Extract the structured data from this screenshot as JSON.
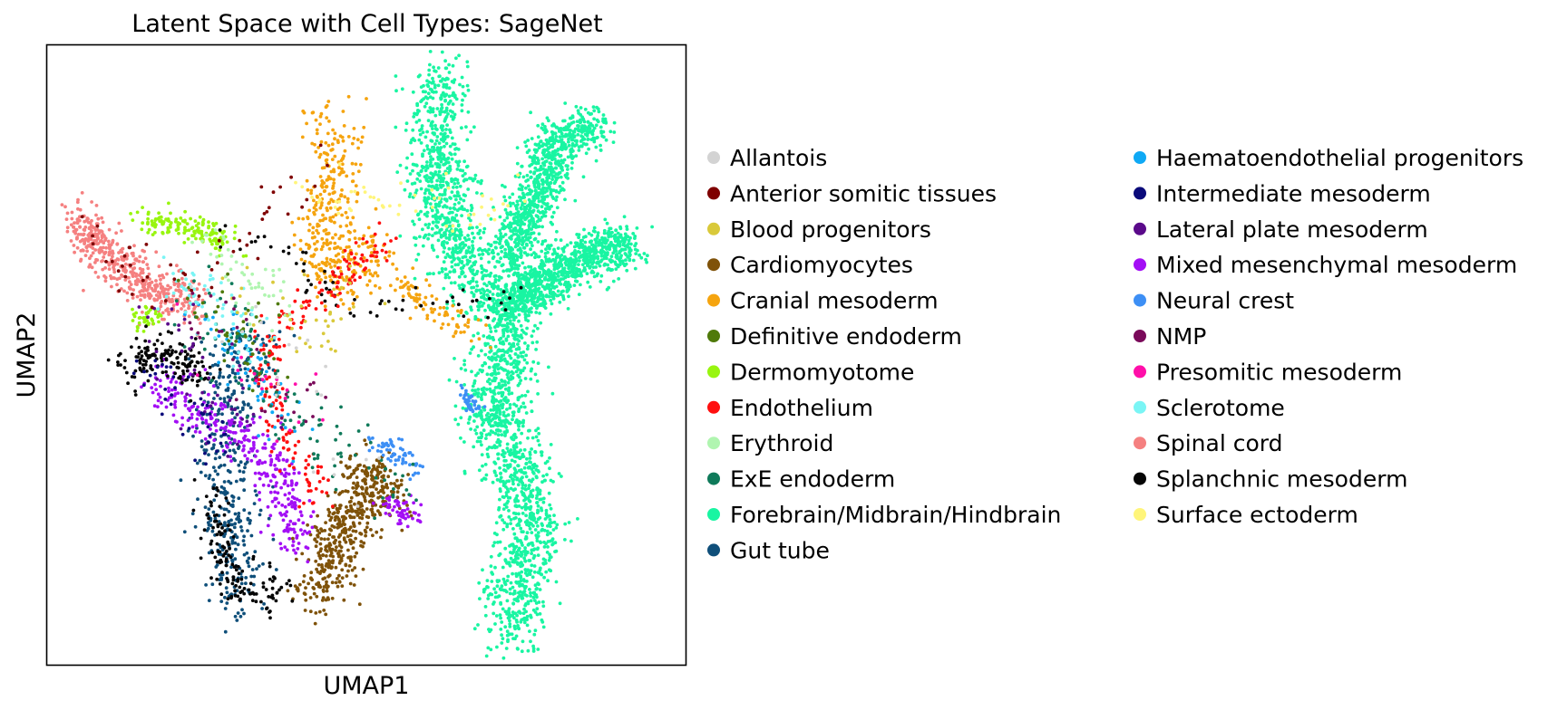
{
  "chart_data": {
    "type": "scatter",
    "title": "Latent Space with Cell Types: SageNet",
    "xlabel": "UMAP1",
    "ylabel": "UMAP2",
    "xlim": [
      0,
      100
    ],
    "ylim": [
      0,
      100
    ],
    "ticks": "none",
    "grid": false,
    "legend_position": "right, outside plot, two columns",
    "legend": [
      {
        "label": "Allantois",
        "color": "#d3d3d3"
      },
      {
        "label": "Anterior somitic tissues",
        "color": "#7f0000"
      },
      {
        "label": "Blood progenitors",
        "color": "#d9c93a"
      },
      {
        "label": "Cardiomyocytes",
        "color": "#7f5209"
      },
      {
        "label": "Cranial mesoderm",
        "color": "#f5a40f"
      },
      {
        "label": "Definitive endoderm",
        "color": "#4f7a0a"
      },
      {
        "label": "Dermomyotome",
        "color": "#98f50f"
      },
      {
        "label": "Endothelium",
        "color": "#ff0f0f"
      },
      {
        "label": "Erythroid",
        "color": "#b0f5b0"
      },
      {
        "label": "ExE endoderm",
        "color": "#0f7a5a"
      },
      {
        "label": "Forebrain/Midbrain/Hindbrain",
        "color": "#19f5a2"
      },
      {
        "label": "Gut tube",
        "color": "#0f4f7a"
      },
      {
        "label": "Haematoendothelial progenitors",
        "color": "#0fa9f5"
      },
      {
        "label": "Intermediate mesoderm",
        "color": "#0a0a7a"
      },
      {
        "label": "Lateral plate mesoderm",
        "color": "#5a0a8a"
      },
      {
        "label": "Mixed mesenchymal mesoderm",
        "color": "#a30ff5"
      },
      {
        "label": "Neural crest",
        "color": "#3d8ff5"
      },
      {
        "label": "NMP",
        "color": "#7a0a5a"
      },
      {
        "label": "Presomitic mesoderm",
        "color": "#ff0fa9"
      },
      {
        "label": "Sclerotome",
        "color": "#7af5f5"
      },
      {
        "label": "Spinal cord",
        "color": "#f58080"
      },
      {
        "label": "Splanchnic mesoderm",
        "color": "#050505"
      },
      {
        "label": "Surface ectoderm",
        "color": "#fff57a"
      }
    ],
    "clusters": [
      {
        "cell_type": "Forebrain/Midbrain/Hindbrain",
        "n": 2200,
        "polyline": [
          [
            61.5,
            95
          ],
          [
            61,
            88
          ],
          [
            61,
            80
          ],
          [
            62,
            72
          ],
          [
            65,
            66
          ],
          [
            69,
            61
          ],
          [
            73,
            56
          ],
          [
            71,
            50
          ],
          [
            71,
            45
          ],
          [
            69,
            41
          ],
          [
            72,
            34
          ],
          [
            75,
            28
          ],
          [
            76,
            22
          ],
          [
            74,
            14
          ],
          [
            73,
            5
          ]
        ],
        "width": 4.5
      },
      {
        "cell_type": "Forebrain/Midbrain/Hindbrain",
        "n": 900,
        "polyline": [
          [
            72,
            65
          ],
          [
            76,
            75
          ],
          [
            80,
            85
          ],
          [
            86,
            87
          ]
        ],
        "width": 3.5
      },
      {
        "cell_type": "Forebrain/Midbrain/Hindbrain",
        "n": 900,
        "polyline": [
          [
            72,
            58
          ],
          [
            78,
            62
          ],
          [
            84,
            66
          ],
          [
            91,
            68
          ]
        ],
        "width": 3.5
      },
      {
        "cell_type": "Spinal cord",
        "n": 480,
        "polyline": [
          [
            5,
            72
          ],
          [
            10,
            66
          ],
          [
            17,
            60
          ],
          [
            23,
            58
          ]
        ],
        "width": 3.2
      },
      {
        "cell_type": "Dermomyotome",
        "n": 150,
        "polyline": [
          [
            15,
            72
          ],
          [
            22,
            71
          ],
          [
            29,
            68
          ]
        ],
        "width": 2
      },
      {
        "cell_type": "Dermomyotome",
        "n": 40,
        "polyline": [
          [
            14,
            55
          ],
          [
            17,
            57
          ]
        ],
        "width": 1.5
      },
      {
        "cell_type": "Cranial mesoderm",
        "n": 380,
        "polyline": [
          [
            44,
            88
          ],
          [
            46,
            80
          ],
          [
            44,
            72
          ],
          [
            42,
            66
          ],
          [
            47,
            62
          ],
          [
            52,
            68
          ]
        ],
        "width": 4.5
      },
      {
        "cell_type": "Cranial mesoderm",
        "n": 80,
        "polyline": [
          [
            56,
            62
          ],
          [
            60,
            58
          ],
          [
            64,
            56
          ],
          [
            67,
            54
          ]
        ],
        "width": 2.5
      },
      {
        "cell_type": "Cardiomyocytes",
        "n": 500,
        "polyline": [
          [
            43,
            11
          ],
          [
            45,
            20
          ],
          [
            48,
            25
          ],
          [
            51,
            31
          ],
          [
            53,
            26
          ]
        ],
        "width": 4
      },
      {
        "cell_type": "Gut tube",
        "n": 420,
        "polyline": [
          [
            31,
            10
          ],
          [
            29,
            20
          ],
          [
            27,
            32
          ],
          [
            28,
            45
          ],
          [
            33,
            53
          ]
        ],
        "width": 4.5
      },
      {
        "cell_type": "Mixed mesenchymal mesoderm",
        "n": 330,
        "polyline": [
          [
            17,
            46
          ],
          [
            23,
            42
          ],
          [
            28,
            38
          ],
          [
            33,
            35
          ],
          [
            38,
            28
          ],
          [
            38,
            18
          ]
        ],
        "width": 3.5
      },
      {
        "cell_type": "Mixed mesenchymal mesoderm",
        "n": 50,
        "polyline": [
          [
            53,
            26
          ],
          [
            55,
            25
          ],
          [
            57,
            24
          ]
        ],
        "width": 2
      },
      {
        "cell_type": "Splanchnic mesoderm",
        "n": 150,
        "polyline": [
          [
            13,
            48
          ],
          [
            17,
            51
          ],
          [
            22,
            49
          ],
          [
            24,
            46
          ]
        ],
        "width": 3
      },
      {
        "cell_type": "Splanchnic mesoderm",
        "n": 140,
        "polyline": [
          [
            25,
            28
          ],
          [
            27,
            20
          ],
          [
            29,
            12
          ],
          [
            35,
            11
          ],
          [
            36,
            15
          ]
        ],
        "width": 2.5
      },
      {
        "cell_type": "Splanchnic mesoderm",
        "n": 60,
        "polyline": [
          [
            28,
            70
          ],
          [
            40,
            65
          ],
          [
            46,
            58
          ],
          [
            75,
            60
          ]
        ],
        "width": 3
      },
      {
        "cell_type": "Endothelium",
        "n": 200,
        "polyline": [
          [
            53,
            70
          ],
          [
            47,
            63
          ],
          [
            40,
            58
          ],
          [
            34,
            52
          ],
          [
            35,
            40
          ],
          [
            40,
            32
          ],
          [
            43,
            26
          ]
        ],
        "width": 2.5
      },
      {
        "cell_type": "Neural crest",
        "n": 60,
        "polyline": [
          [
            51,
            36
          ],
          [
            55,
            34
          ],
          [
            58,
            31
          ]
        ],
        "width": 1.5
      },
      {
        "cell_type": "Neural crest",
        "n": 40,
        "polyline": [
          [
            65,
            44
          ],
          [
            67,
            41
          ]
        ],
        "width": 1
      },
      {
        "cell_type": "Haematoendothelial progenitors",
        "n": 60,
        "polyline": [
          [
            26,
            58
          ],
          [
            30,
            50
          ],
          [
            35,
            44
          ],
          [
            38,
            36
          ]
        ],
        "width": 4
      },
      {
        "cell_type": "ExE endoderm",
        "n": 120,
        "polyline": [
          [
            25,
            60
          ],
          [
            30,
            50
          ],
          [
            35,
            44
          ],
          [
            45,
            36
          ],
          [
            55,
            28
          ]
        ],
        "width": 5
      },
      {
        "cell_type": "Sclerotome",
        "n": 60,
        "polyline": [
          [
            20,
            62
          ],
          [
            28,
            58
          ],
          [
            32,
            52
          ]
        ],
        "width": 4
      },
      {
        "cell_type": "Erythroid",
        "n": 45,
        "polyline": [
          [
            26,
            68
          ],
          [
            30,
            64
          ],
          [
            36,
            58
          ]
        ],
        "width": 4
      },
      {
        "cell_type": "Surface ectoderm",
        "n": 50,
        "polyline": [
          [
            40,
            75
          ],
          [
            46,
            76
          ],
          [
            70,
            72
          ],
          [
            73,
            76
          ]
        ],
        "width": 4
      },
      {
        "cell_type": "Definitive endoderm",
        "n": 40,
        "polyline": [
          [
            22,
            62
          ],
          [
            30,
            55
          ],
          [
            35,
            48
          ]
        ],
        "width": 5
      },
      {
        "cell_type": "Lateral plate mesoderm",
        "n": 45,
        "polyline": [
          [
            18,
            56
          ],
          [
            25,
            45
          ],
          [
            33,
            35
          ]
        ],
        "width": 5
      },
      {
        "cell_type": "Intermediate mesoderm",
        "n": 40,
        "polyline": [
          [
            15,
            48
          ],
          [
            20,
            44
          ],
          [
            28,
            35
          ]
        ],
        "width": 4
      },
      {
        "cell_type": "Anterior somitic tissues",
        "n": 50,
        "polyline": [
          [
            7,
            71
          ],
          [
            13,
            64
          ],
          [
            20,
            60
          ],
          [
            40,
            78
          ]
        ],
        "width": 4
      },
      {
        "cell_type": "Blood progenitors",
        "n": 40,
        "polyline": [
          [
            30,
            62
          ],
          [
            36,
            56
          ],
          [
            42,
            52
          ],
          [
            45,
            62
          ]
        ],
        "width": 5
      },
      {
        "cell_type": "NMP",
        "n": 30,
        "polyline": [
          [
            20,
            60
          ],
          [
            28,
            55
          ],
          [
            40,
            40
          ]
        ],
        "width": 5
      },
      {
        "cell_type": "Presomitic mesoderm",
        "n": 20,
        "polyline": [
          [
            25,
            55
          ],
          [
            33,
            45
          ],
          [
            40,
            38
          ]
        ],
        "width": 5
      },
      {
        "cell_type": "Allantois",
        "n": 20,
        "polyline": [
          [
            25,
            60
          ],
          [
            40,
            45
          ],
          [
            50,
            30
          ]
        ],
        "width": 6
      }
    ]
  }
}
